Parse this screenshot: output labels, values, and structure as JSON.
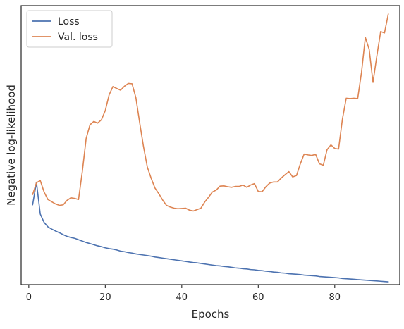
{
  "chart_data": {
    "type": "line",
    "title": "",
    "xlabel": "Epochs",
    "ylabel": "Negative log-likelihood",
    "xlim": [
      -2,
      97
    ],
    "ylim": [
      0,
      100
    ],
    "x_ticks": [
      0,
      20,
      40,
      60,
      80
    ],
    "y_ticks_shown": false,
    "grid": false,
    "legend": "top-left",
    "series": [
      {
        "name": "Loss",
        "color": "#4c72b0",
        "x": [
          1,
          2,
          3,
          4,
          5,
          6,
          7,
          8,
          9,
          10,
          11,
          12,
          13,
          14,
          15,
          16,
          17,
          18,
          19,
          20,
          21,
          22,
          23,
          24,
          25,
          26,
          27,
          28,
          29,
          30,
          31,
          32,
          33,
          34,
          35,
          36,
          37,
          38,
          39,
          40,
          41,
          42,
          43,
          44,
          45,
          46,
          47,
          48,
          49,
          50,
          51,
          52,
          53,
          54,
          55,
          56,
          57,
          58,
          59,
          60,
          61,
          62,
          63,
          64,
          65,
          66,
          67,
          68,
          69,
          70,
          71,
          72,
          73,
          74,
          75,
          76,
          77,
          78,
          79,
          80,
          81,
          82,
          83,
          84,
          85,
          86,
          87,
          88,
          89,
          90,
          91,
          92,
          93,
          94
        ],
        "values": [
          28.6,
          36.7,
          25.3,
          22.3,
          20.7,
          19.9,
          19.2,
          18.6,
          17.9,
          17.3,
          16.9,
          16.6,
          16.1,
          15.6,
          15.1,
          14.7,
          14.3,
          13.9,
          13.6,
          13.2,
          12.9,
          12.7,
          12.4,
          12.0,
          11.8,
          11.5,
          11.3,
          11.0,
          10.8,
          10.6,
          10.4,
          10.2,
          9.9,
          9.7,
          9.5,
          9.3,
          9.1,
          8.9,
          8.7,
          8.5,
          8.3,
          8.1,
          7.9,
          7.8,
          7.6,
          7.4,
          7.2,
          7.0,
          6.8,
          6.7,
          6.5,
          6.4,
          6.2,
          6.0,
          5.9,
          5.7,
          5.6,
          5.4,
          5.3,
          5.1,
          5.0,
          4.8,
          4.7,
          4.5,
          4.4,
          4.2,
          4.1,
          3.9,
          3.8,
          3.7,
          3.6,
          3.4,
          3.3,
          3.2,
          3.1,
          2.9,
          2.8,
          2.7,
          2.6,
          2.5,
          2.4,
          2.2,
          2.1,
          2.0,
          1.9,
          1.8,
          1.7,
          1.6,
          1.5,
          1.4,
          1.3,
          1.2,
          1.1,
          1.0
        ]
      },
      {
        "name": "Val. loss",
        "color": "#dd8452",
        "x": [
          1,
          2,
          3,
          4,
          5,
          6,
          7,
          8,
          9,
          10,
          11,
          12,
          13,
          14,
          15,
          16,
          17,
          18,
          19,
          20,
          21,
          22,
          23,
          24,
          25,
          26,
          27,
          28,
          29,
          30,
          31,
          32,
          33,
          34,
          35,
          36,
          37,
          38,
          39,
          40,
          41,
          42,
          43,
          44,
          45,
          46,
          47,
          48,
          49,
          50,
          51,
          52,
          53,
          54,
          55,
          56,
          57,
          58,
          59,
          60,
          61,
          62,
          63,
          64,
          65,
          66,
          67,
          68,
          69,
          70,
          71,
          72,
          73,
          74,
          75,
          76,
          77,
          78,
          79,
          80,
          81,
          82,
          83,
          84,
          85,
          86,
          87,
          88,
          89,
          90,
          91,
          92,
          93,
          94
        ],
        "values": [
          32.3,
          36.5,
          37.3,
          33.2,
          30.5,
          29.7,
          28.9,
          28.4,
          28.6,
          30.2,
          31.1,
          30.9,
          30.5,
          40.6,
          52.4,
          57.3,
          58.5,
          57.9,
          59.1,
          62.4,
          68.0,
          71.0,
          70.3,
          69.7,
          71.1,
          72.1,
          72.0,
          67.0,
          58.0,
          49.4,
          42.1,
          38.1,
          34.6,
          32.6,
          30.3,
          28.4,
          27.8,
          27.4,
          27.2,
          27.3,
          27.4,
          26.7,
          26.4,
          26.9,
          27.4,
          29.6,
          31.3,
          33.2,
          33.9,
          35.3,
          35.4,
          35.1,
          34.9,
          35.2,
          35.2,
          35.7,
          34.9,
          35.7,
          36.2,
          33.4,
          33.3,
          35.1,
          36.4,
          36.8,
          36.8,
          38.2,
          39.4,
          40.5,
          38.6,
          39.1,
          43.3,
          46.8,
          46.5,
          46.3,
          46.7,
          43.3,
          42.8,
          48.4,
          50.1,
          48.8,
          48.6,
          59.3,
          66.8,
          66.7,
          66.8,
          66.7,
          76.1,
          88.6,
          84.3,
          72.5,
          81.9,
          90.7,
          90.2,
          97.0
        ]
      }
    ]
  }
}
